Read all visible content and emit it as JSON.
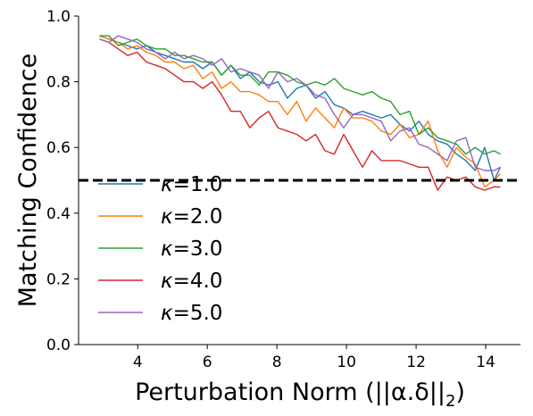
{
  "chart_data": {
    "type": "line",
    "xlabel": "Perturbation Norm (||α.δ||",
    "xlabel_sub": "2",
    "xlabel_close": ")",
    "ylabel": "Matching Confidence",
    "xlim": [
      2.3,
      15.0
    ],
    "ylim": [
      0.0,
      1.0
    ],
    "xticks": [
      4,
      6,
      8,
      10,
      12,
      14
    ],
    "yticks": [
      0.0,
      0.2,
      0.4,
      0.6,
      0.8,
      1.0
    ],
    "xtick_labels": [
      "4",
      "6",
      "8",
      "10",
      "12",
      "14"
    ],
    "ytick_labels": [
      "0.0",
      "0.2",
      "0.4",
      "0.6",
      "0.8",
      "1.0"
    ],
    "reference_line": {
      "y": 0.5,
      "style": "dashed",
      "color": "#000000"
    },
    "grid": false,
    "legend_position": "center-left",
    "x": [
      2.9,
      3.17,
      3.44,
      3.71,
      3.98,
      4.25,
      4.52,
      4.79,
      5.06,
      5.33,
      5.6,
      5.87,
      6.14,
      6.41,
      6.68,
      6.95,
      7.22,
      7.49,
      7.76,
      8.03,
      8.3,
      8.57,
      8.84,
      9.11,
      9.38,
      9.65,
      9.92,
      10.19,
      10.46,
      10.73,
      11.0,
      11.27,
      11.54,
      11.81,
      12.08,
      12.35,
      12.62,
      12.89,
      13.16,
      13.43,
      13.7,
      13.97,
      14.24,
      14.42
    ],
    "series": [
      {
        "name": "κ=1.0",
        "label_prefix": "κ",
        "label_value": "=1.0",
        "color": "#1f77b4",
        "values": [
          0.94,
          0.93,
          0.92,
          0.91,
          0.9,
          0.91,
          0.89,
          0.88,
          0.87,
          0.86,
          0.86,
          0.84,
          0.86,
          0.82,
          0.85,
          0.81,
          0.83,
          0.8,
          0.79,
          0.8,
          0.75,
          0.78,
          0.79,
          0.75,
          0.77,
          0.73,
          0.72,
          0.7,
          0.71,
          0.7,
          0.69,
          0.7,
          0.67,
          0.65,
          0.68,
          0.64,
          0.62,
          0.61,
          0.58,
          0.56,
          0.53,
          0.6,
          0.5,
          0.54
        ]
      },
      {
        "name": "κ=2.0",
        "label_prefix": "κ",
        "label_value": "=2.0",
        "color": "#ff7f0e",
        "values": [
          0.94,
          0.93,
          0.92,
          0.9,
          0.91,
          0.89,
          0.88,
          0.86,
          0.86,
          0.84,
          0.85,
          0.81,
          0.83,
          0.78,
          0.8,
          0.77,
          0.77,
          0.76,
          0.74,
          0.74,
          0.7,
          0.74,
          0.68,
          0.72,
          0.69,
          0.66,
          0.72,
          0.69,
          0.69,
          0.68,
          0.65,
          0.64,
          0.67,
          0.63,
          0.64,
          0.68,
          0.59,
          0.54,
          0.6,
          0.57,
          0.55,
          0.48,
          0.5,
          0.52
        ]
      },
      {
        "name": "κ=3.0",
        "label_prefix": "κ",
        "label_value": "=3.0",
        "color": "#2ca02c",
        "values": [
          0.94,
          0.94,
          0.91,
          0.92,
          0.93,
          0.91,
          0.9,
          0.9,
          0.88,
          0.88,
          0.87,
          0.86,
          0.86,
          0.82,
          0.85,
          0.82,
          0.82,
          0.79,
          0.83,
          0.83,
          0.82,
          0.8,
          0.79,
          0.8,
          0.79,
          0.81,
          0.78,
          0.77,
          0.76,
          0.77,
          0.75,
          0.74,
          0.7,
          0.71,
          0.64,
          0.66,
          0.63,
          0.62,
          0.61,
          0.58,
          0.6,
          0.58,
          0.59,
          0.58
        ]
      },
      {
        "name": "κ=4.0",
        "label_prefix": "κ",
        "label_value": "=4.0",
        "color": "#d62728",
        "values": [
          0.93,
          0.92,
          0.9,
          0.88,
          0.89,
          0.86,
          0.85,
          0.84,
          0.82,
          0.8,
          0.8,
          0.78,
          0.8,
          0.76,
          0.71,
          0.71,
          0.66,
          0.69,
          0.71,
          0.66,
          0.65,
          0.64,
          0.62,
          0.64,
          0.59,
          0.58,
          0.64,
          0.59,
          0.54,
          0.59,
          0.56,
          0.56,
          0.56,
          0.55,
          0.54,
          0.54,
          0.47,
          0.51,
          0.5,
          0.51,
          0.48,
          0.47,
          0.48,
          0.48
        ]
      },
      {
        "name": "κ=5.0",
        "label_prefix": "κ",
        "label_value": "=5.0",
        "color": "#9467bd",
        "values": [
          0.93,
          0.92,
          0.94,
          0.93,
          0.92,
          0.9,
          0.89,
          0.87,
          0.89,
          0.87,
          0.88,
          0.87,
          0.85,
          0.87,
          0.83,
          0.84,
          0.83,
          0.82,
          0.78,
          0.83,
          0.8,
          0.81,
          0.79,
          0.76,
          0.75,
          0.7,
          0.66,
          0.7,
          0.7,
          0.69,
          0.68,
          0.62,
          0.65,
          0.66,
          0.61,
          0.6,
          0.58,
          0.56,
          0.62,
          0.63,
          0.54,
          0.53,
          0.53,
          0.54
        ]
      }
    ]
  }
}
